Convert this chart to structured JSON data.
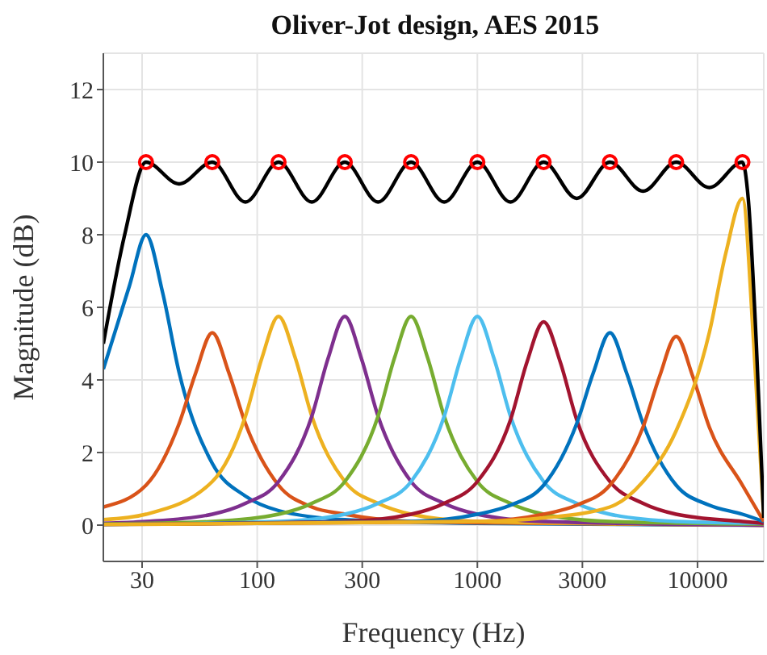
{
  "chart_data": {
    "type": "line",
    "title": "Oliver-Jot design, AES 2015",
    "xlabel": "Frequency (Hz)",
    "ylabel": "Magnitude (dB)",
    "log": "x",
    "xlim": [
      20,
      20000
    ],
    "xticks": [
      30,
      100,
      300,
      1000,
      3000,
      10000
    ],
    "ylim": [
      -1,
      13
    ],
    "yticks": [
      0,
      2,
      4,
      6,
      8,
      10,
      12
    ],
    "grid": true,
    "legend": false,
    "series": [
      {
        "color": "#0072bd",
        "x": [
          20,
          26.3,
          31.25,
          37.2,
          44.2,
          62.5,
          88.4,
          125,
          250,
          1000,
          20000
        ],
        "values": [
          4.3,
          6.6,
          8,
          6.4,
          4.2,
          1.7,
          0.8,
          0.4,
          0.15,
          0.05,
          0
        ]
      },
      {
        "color": "#d95319",
        "x": [
          20,
          31.25,
          44.2,
          52.6,
          62.5,
          74.3,
          88.4,
          125,
          177,
          250,
          500,
          2000,
          20000
        ],
        "values": [
          0.5,
          1.1,
          2.8,
          4.2,
          5.3,
          4.2,
          2.8,
          1.1,
          0.5,
          0.3,
          0.1,
          0.05,
          0
        ]
      },
      {
        "color": "#edb120",
        "x": [
          20,
          31.25,
          62.5,
          88.4,
          105,
          125,
          149,
          177,
          250,
          354,
          500,
          1000,
          20000
        ],
        "values": [
          0.15,
          0.3,
          1.2,
          3.0,
          4.6,
          5.75,
          4.6,
          3.0,
          1.2,
          0.6,
          0.3,
          0.1,
          0
        ]
      },
      {
        "color": "#7e2f8e",
        "x": [
          20,
          31.25,
          62.5,
          88.4,
          125,
          177,
          210,
          250,
          297,
          354,
          500,
          707,
          1000,
          2000,
          20000
        ],
        "values": [
          0.05,
          0.1,
          0.3,
          0.6,
          1.2,
          3.0,
          4.6,
          5.75,
          4.6,
          3.0,
          1.2,
          0.6,
          0.3,
          0.1,
          0
        ]
      },
      {
        "color": "#77ac30",
        "x": [
          20,
          62.5,
          125,
          177,
          250,
          354,
          420,
          500,
          595,
          707,
          1000,
          1414,
          2000,
          4000,
          20000
        ],
        "values": [
          0.03,
          0.1,
          0.3,
          0.6,
          1.2,
          3.0,
          4.6,
          5.75,
          4.6,
          3.0,
          1.2,
          0.6,
          0.3,
          0.1,
          0.03
        ]
      },
      {
        "color": "#4dbeee",
        "x": [
          20,
          125,
          250,
          354,
          500,
          707,
          841,
          1000,
          1189,
          1414,
          2000,
          2828,
          4000,
          8000,
          20000
        ],
        "values": [
          0.02,
          0.1,
          0.3,
          0.6,
          1.2,
          3.0,
          4.6,
          5.75,
          4.6,
          3.0,
          1.2,
          0.6,
          0.3,
          0.1,
          0.05
        ]
      },
      {
        "color": "#a2142f",
        "x": [
          20,
          250,
          500,
          707,
          1000,
          1414,
          1682,
          2000,
          2378,
          2828,
          4000,
          5657,
          8000,
          16000,
          20000
        ],
        "values": [
          0.02,
          0.1,
          0.3,
          0.6,
          1.2,
          2.9,
          4.5,
          5.6,
          4.5,
          2.9,
          1.2,
          0.6,
          0.3,
          0.1,
          0.05
        ]
      },
      {
        "color": "#0072bd",
        "x": [
          20,
          500,
          1000,
          1414,
          2000,
          2828,
          3364,
          4000,
          4757,
          5657,
          8000,
          11314,
          16000,
          20000
        ],
        "values": [
          0.02,
          0.1,
          0.3,
          0.55,
          1.1,
          2.8,
          4.2,
          5.3,
          4.2,
          2.8,
          1.1,
          0.55,
          0.3,
          0.1
        ]
      },
      {
        "color": "#d95319",
        "x": [
          20,
          1000,
          2000,
          2828,
          4000,
          5657,
          6727,
          8000,
          9514,
          11314,
          16000,
          20000
        ],
        "values": [
          0.02,
          0.1,
          0.3,
          0.55,
          1.1,
          2.7,
          4.1,
          5.2,
          4.1,
          2.7,
          1.1,
          0.1
        ]
      },
      {
        "color": "#edb120",
        "x": [
          20,
          1000,
          2000,
          4000,
          5657,
          8000,
          11314,
          13454,
          16000,
          18000,
          20000
        ],
        "values": [
          0.02,
          0.1,
          0.2,
          0.5,
          1.2,
          2.6,
          5.3,
          7.5,
          9,
          5,
          0.2
        ]
      },
      {
        "color": "#000000",
        "x": [
          20,
          25,
          31.25,
          44.2,
          62.5,
          88.4,
          125,
          177,
          250,
          354,
          500,
          707,
          1000,
          1414,
          2000,
          2828,
          4000,
          5657,
          8000,
          11314,
          16000,
          17000,
          18500,
          20000
        ],
        "values": [
          5,
          8,
          10,
          9.4,
          10,
          8.9,
          10,
          8.9,
          10,
          8.9,
          10,
          8.9,
          10,
          8.9,
          10,
          9.0,
          10,
          9.2,
          10,
          9.3,
          10,
          9,
          5,
          0.2
        ]
      },
      {
        "type": "scatter",
        "color": "#ff0000",
        "marker": "circle",
        "x": [
          31.25,
          62.5,
          125,
          250,
          500,
          1000,
          2000,
          4000,
          8000,
          16000
        ],
        "values": [
          10,
          10,
          10,
          10,
          10,
          10,
          10,
          10,
          10,
          10
        ]
      }
    ]
  }
}
